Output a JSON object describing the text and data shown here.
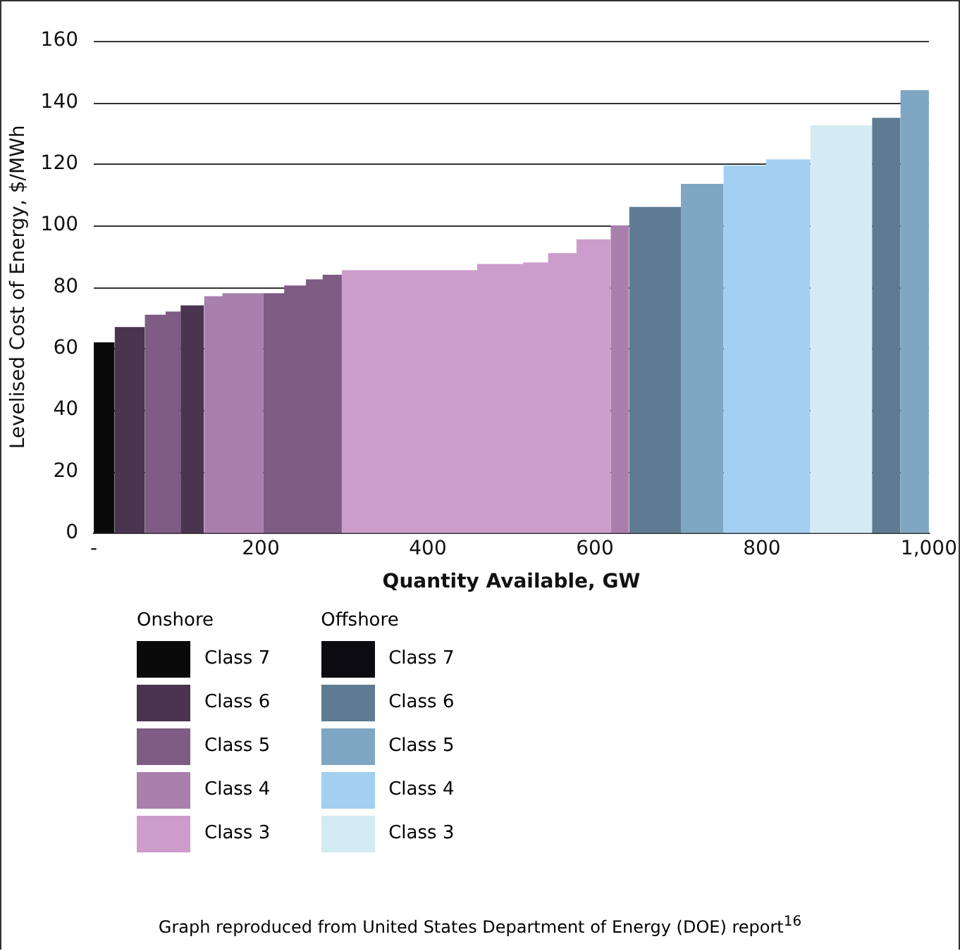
{
  "chart_data": {
    "type": "area",
    "xlabel": "Quantity Available, GW",
    "ylabel": "Levelised Cost of Energy, $/MWh",
    "legend_title": [
      "Onshore",
      "Offshore"
    ],
    "xlim": [
      0,
      1000
    ],
    "xticks": [
      {
        "value": 0,
        "label": "-"
      },
      200,
      400,
      600,
      800,
      {
        "value": 1000,
        "label": "1,000"
      }
    ],
    "ylim": [
      0,
      160
    ],
    "yticks": [
      0,
      20,
      40,
      60,
      80,
      100,
      120,
      140,
      160
    ],
    "grid": "y",
    "legend": "bottom left",
    "series": [
      {
        "name": "Class 7",
        "color": "#0a0a0a",
        "x": [
          0,
          25
        ],
        "values": [
          62,
          62
        ]
      },
      {
        "name": "Class 6",
        "color": "#4a3450",
        "x": [
          25,
          61,
          61,
          104,
          104,
          132
        ],
        "values": [
          67,
          67,
          0,
          0,
          74,
          74
        ]
      },
      {
        "name": "Class 5",
        "color": "#7e5c84",
        "x": [
          61,
          86,
          86,
          104,
          104,
          203,
          203,
          228,
          228,
          254,
          254,
          274,
          274,
          297
        ],
        "values": [
          71,
          71,
          72,
          72,
          0,
          0,
          78,
          78,
          80.5,
          80.5,
          82.5,
          82.5,
          84,
          84
        ]
      },
      {
        "name": "Class 4",
        "color": "#a97fae",
        "x": [
          132,
          154,
          154,
          203,
          203,
          619,
          619,
          641
        ],
        "values": [
          77,
          77,
          78,
          78,
          0,
          0,
          100,
          100
        ]
      },
      {
        "name": "Class 3",
        "color": "#cc9dcb",
        "x": [
          297,
          459,
          459,
          514,
          514,
          544,
          544,
          578,
          578,
          619
        ],
        "values": [
          85.5,
          85.5,
          87.5,
          87.5,
          88,
          88,
          91,
          91,
          95.5,
          95.5
        ]
      },
      {
        "name": "Class 7",
        "color": "#0b0b10"
      },
      {
        "name": "Class 6",
        "color": "#5f7b93",
        "x": [
          641,
          703,
          703,
          932,
          932,
          966
        ],
        "values": [
          106,
          106,
          0,
          0,
          135,
          135
        ]
      },
      {
        "name": "Class 5",
        "color": "#7fa6c2",
        "x": [
          703,
          754,
          754,
          966,
          966,
          1000
        ],
        "values": [
          113.5,
          113.5,
          0,
          0,
          144,
          144
        ]
      },
      {
        "name": "Class 4",
        "color": "#a3cff0",
        "x": [
          754,
          805,
          805,
          858
        ],
        "values": [
          119.5,
          119.5,
          121.5,
          121.5
        ]
      },
      {
        "name": "Class 3",
        "color": "#d3ebf3",
        "x": [
          858,
          932
        ],
        "values": [
          132.5,
          132.5
        ]
      }
    ],
    "annotations": [
      "Graph reproduced from United States Department of Energy (DOE) report$^{16}$"
    ]
  }
}
